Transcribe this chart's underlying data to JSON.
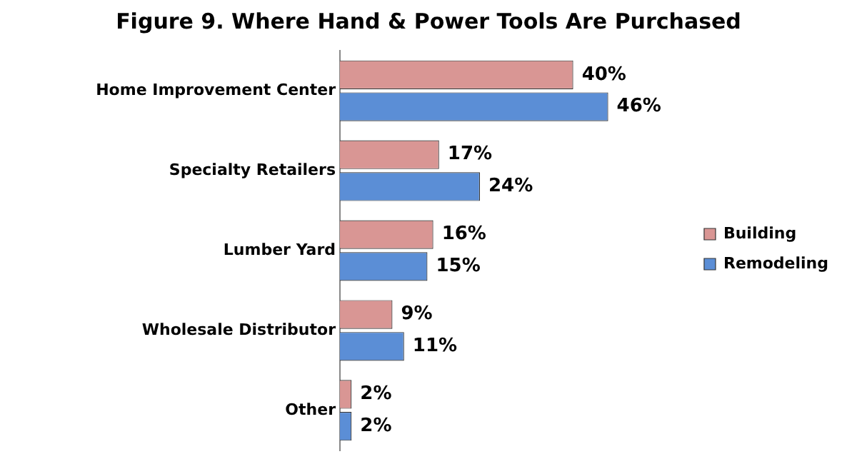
{
  "chart_data": {
    "type": "bar",
    "orientation": "horizontal",
    "title": "Figure 9.  Where Hand & Power Tools Are Purchased",
    "categories": [
      "Home Improvement Center",
      "Specialty Retailers",
      "Lumber Yard",
      "Wholesale Distributor",
      "Other"
    ],
    "series": [
      {
        "name": "Building",
        "color": "#d99694",
        "values": [
          40,
          17,
          16,
          9,
          2
        ],
        "value_labels": [
          "40%",
          "17%",
          "16%",
          "9%",
          "2%"
        ]
      },
      {
        "name": "Remodeling",
        "color": "#5b8ed6",
        "values": [
          46,
          24,
          15,
          11,
          2
        ],
        "value_labels": [
          "46%",
          "24%",
          "15%",
          "11%",
          "2%"
        ]
      }
    ],
    "grid": false,
    "legend": "right",
    "tick_labels": "y"
  }
}
